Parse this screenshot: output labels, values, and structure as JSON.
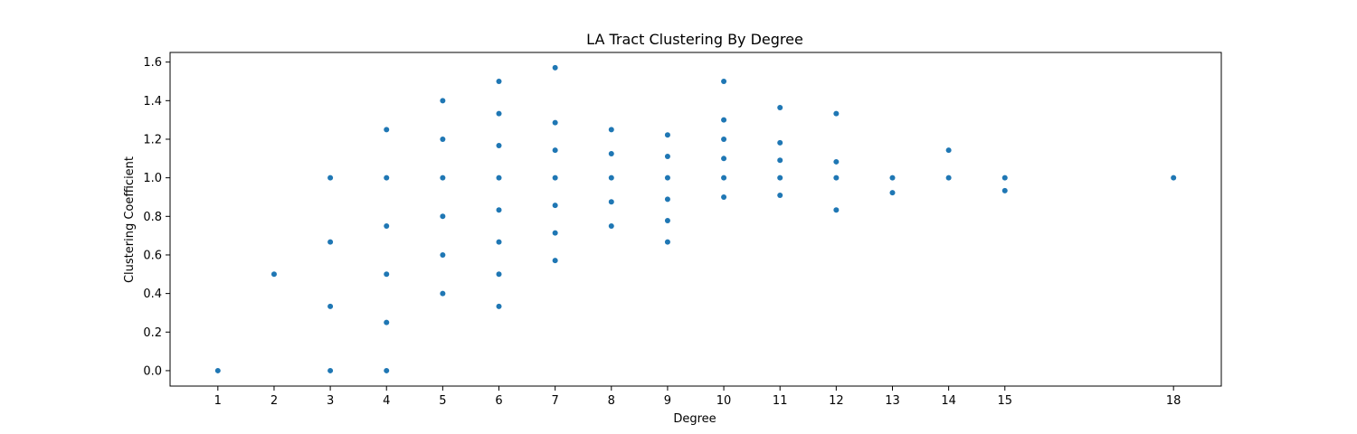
{
  "chart_data": {
    "type": "scatter",
    "title": "LA Tract Clustering By Degree",
    "xlabel": "Degree",
    "ylabel": "Clustering Coefficient",
    "xlim": [
      0.15,
      18.85
    ],
    "ylim": [
      -0.08,
      1.65
    ],
    "x_ticks": [
      1,
      2,
      3,
      4,
      5,
      6,
      7,
      8,
      9,
      10,
      11,
      12,
      13,
      14,
      15,
      18
    ],
    "y_ticks": [
      0.0,
      0.2,
      0.4,
      0.6,
      0.8,
      1.0,
      1.2,
      1.4,
      1.6
    ],
    "y_tick_labels": [
      "0.0",
      "0.2",
      "0.4",
      "0.6",
      "0.8",
      "1.0",
      "1.2",
      "1.4",
      "1.6"
    ],
    "grid": false,
    "marker_color": "#1f77b4",
    "series": [
      {
        "points": [
          [
            1,
            0.0
          ],
          [
            2,
            0.5
          ],
          [
            3,
            0.0
          ],
          [
            3,
            0.333
          ],
          [
            3,
            0.667
          ],
          [
            3,
            1.0
          ],
          [
            4,
            0.0
          ],
          [
            4,
            0.25
          ],
          [
            4,
            0.5
          ],
          [
            4,
            0.75
          ],
          [
            4,
            1.0
          ],
          [
            4,
            1.25
          ],
          [
            5,
            0.4
          ],
          [
            5,
            0.6
          ],
          [
            5,
            0.8
          ],
          [
            5,
            1.0
          ],
          [
            5,
            1.2
          ],
          [
            5,
            1.4
          ],
          [
            6,
            0.333
          ],
          [
            6,
            0.5
          ],
          [
            6,
            0.667
          ],
          [
            6,
            0.833
          ],
          [
            6,
            1.0
          ],
          [
            6,
            1.167
          ],
          [
            6,
            1.333
          ],
          [
            6,
            1.5
          ],
          [
            7,
            0.571
          ],
          [
            7,
            0.714
          ],
          [
            7,
            0.857
          ],
          [
            7,
            1.0
          ],
          [
            7,
            1.143
          ],
          [
            7,
            1.286
          ],
          [
            7,
            1.571
          ],
          [
            8,
            0.75
          ],
          [
            8,
            0.875
          ],
          [
            8,
            1.0
          ],
          [
            8,
            1.125
          ],
          [
            8,
            1.25
          ],
          [
            9,
            0.667
          ],
          [
            9,
            0.778
          ],
          [
            9,
            0.889
          ],
          [
            9,
            1.0
          ],
          [
            9,
            1.111
          ],
          [
            9,
            1.222
          ],
          [
            10,
            0.9
          ],
          [
            10,
            1.0
          ],
          [
            10,
            1.1
          ],
          [
            10,
            1.2
          ],
          [
            10,
            1.3
          ],
          [
            10,
            1.5
          ],
          [
            11,
            0.909
          ],
          [
            11,
            1.0
          ],
          [
            11,
            1.091
          ],
          [
            11,
            1.182
          ],
          [
            11,
            1.364
          ],
          [
            12,
            0.833
          ],
          [
            12,
            1.0
          ],
          [
            12,
            1.083
          ],
          [
            12,
            1.333
          ],
          [
            13,
            0.923
          ],
          [
            13,
            1.0
          ],
          [
            14,
            1.0
          ],
          [
            14,
            1.143
          ],
          [
            15,
            0.933
          ],
          [
            15,
            1.0
          ],
          [
            18,
            1.0
          ]
        ]
      }
    ]
  }
}
